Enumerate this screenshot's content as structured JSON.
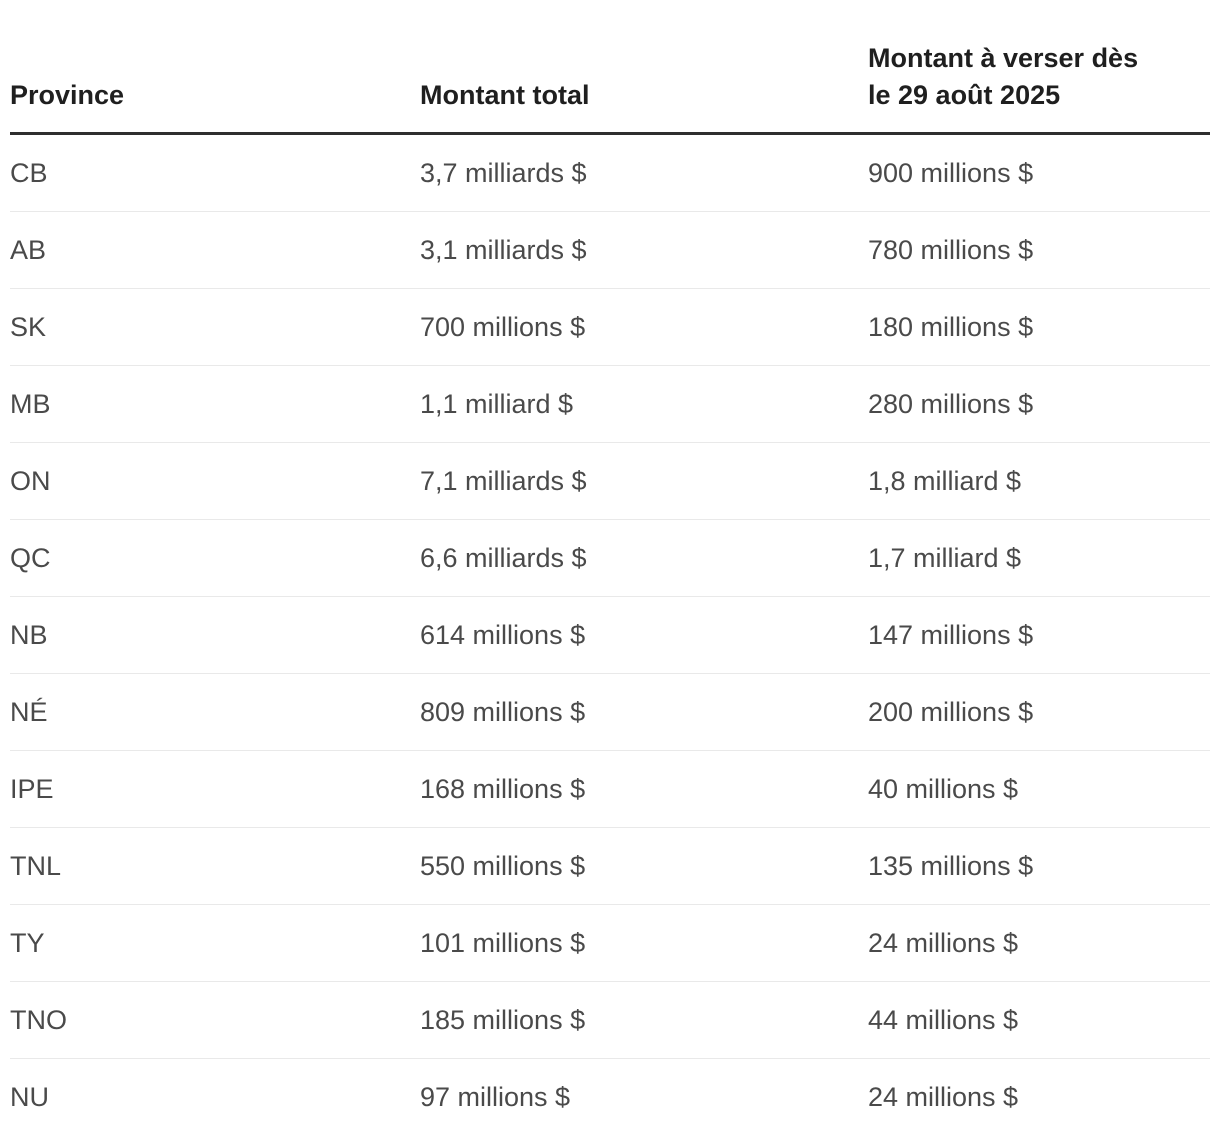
{
  "chart_data": {
    "type": "table",
    "columns": [
      "Province",
      "Montant total",
      "Montant à verser dès le 29 août 2025"
    ],
    "rows": [
      [
        "CB",
        "3,7 milliards $",
        "900 millions $"
      ],
      [
        "AB",
        "3,1 milliards $",
        "780 millions $"
      ],
      [
        "SK",
        "700 millions $",
        "180 millions $"
      ],
      [
        "MB",
        "1,1 milliard $",
        "280 millions $"
      ],
      [
        "ON",
        "7,1 milliards $",
        "1,8 milliard $"
      ],
      [
        "QC",
        "6,6 milliards $",
        "1,7 milliard $"
      ],
      [
        "NB",
        "614 millions $",
        "147 millions $"
      ],
      [
        "NÉ",
        "809 millions $",
        "200 millions $"
      ],
      [
        "IPE",
        "168 millions $",
        "40 millions $"
      ],
      [
        "TNL",
        "550 millions $",
        "135 millions $"
      ],
      [
        "TY",
        "101 millions $",
        "24 millions $"
      ],
      [
        "TNO",
        "185 millions $",
        "44 millions $"
      ],
      [
        "NU",
        "97 millions $",
        "24 millions $"
      ]
    ],
    "layout": {
      "header_rule_color": "#2e2e2e",
      "row_rule_color": "#e9e9e9",
      "header_text_color": "#1f1f1f",
      "body_text_color": "#4a4a4a",
      "background": "#ffffff"
    }
  }
}
